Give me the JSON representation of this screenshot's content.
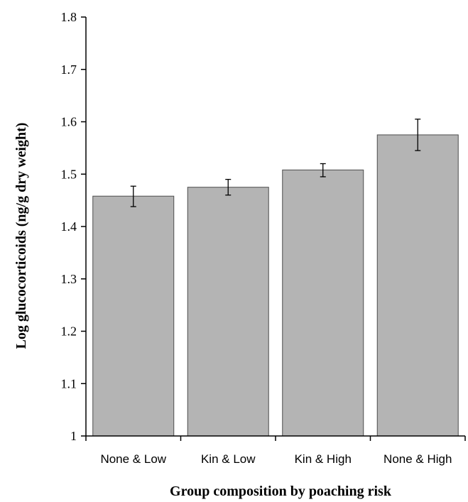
{
  "chart_data": {
    "type": "bar",
    "title": "",
    "xlabel": "Group composition by poaching risk",
    "ylabel": "Log glucocorticoids (ng/g dry weight)",
    "categories": [
      "None & Low",
      "Kin & Low",
      "Kin & High",
      "None & High"
    ],
    "values": [
      1.458,
      1.475,
      1.508,
      1.575
    ],
    "error_low": [
      1.438,
      1.46,
      1.495,
      1.545
    ],
    "error_high": [
      1.477,
      1.49,
      1.52,
      1.605
    ],
    "ylim": [
      1,
      1.8
    ],
    "yticks": [
      1,
      1.1,
      1.2,
      1.3,
      1.4,
      1.5,
      1.6,
      1.7,
      1.8
    ],
    "ytick_labels": [
      "1",
      "1.1",
      "1.2",
      "1.3",
      "1.4",
      "1.5",
      "1.6",
      "1.7",
      "1.8"
    ],
    "grid": false,
    "bar_color": "#b4b4b4"
  }
}
